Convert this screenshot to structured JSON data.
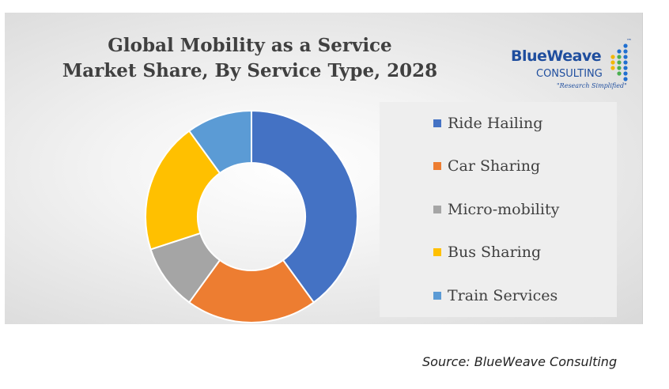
{
  "logo": {
    "name": "BlueWeave",
    "sub": "CONSULTING",
    "tagline": "\"Research Simplified\"",
    "tm": "™",
    "color": "#1f4e9e",
    "dot_colors": [
      "#f2b705",
      "#4caf50",
      "#1f6fd0"
    ]
  },
  "source": "Source: BlueWeave Consulting",
  "chart_data": {
    "type": "pie",
    "variant": "donut",
    "title_lines": [
      "Global Mobility as a Service",
      "Market Share, By Service Type, 2028"
    ],
    "categories": [
      "Ride Hailing",
      "Car Sharing",
      "Micro-mobility",
      "Bus Sharing",
      "Train Services"
    ],
    "values": [
      40,
      20,
      10,
      20,
      10
    ],
    "colors": [
      "#4472c4",
      "#ed7d31",
      "#a5a5a5",
      "#ffc000",
      "#5b9bd5"
    ],
    "legend_position": "right"
  }
}
